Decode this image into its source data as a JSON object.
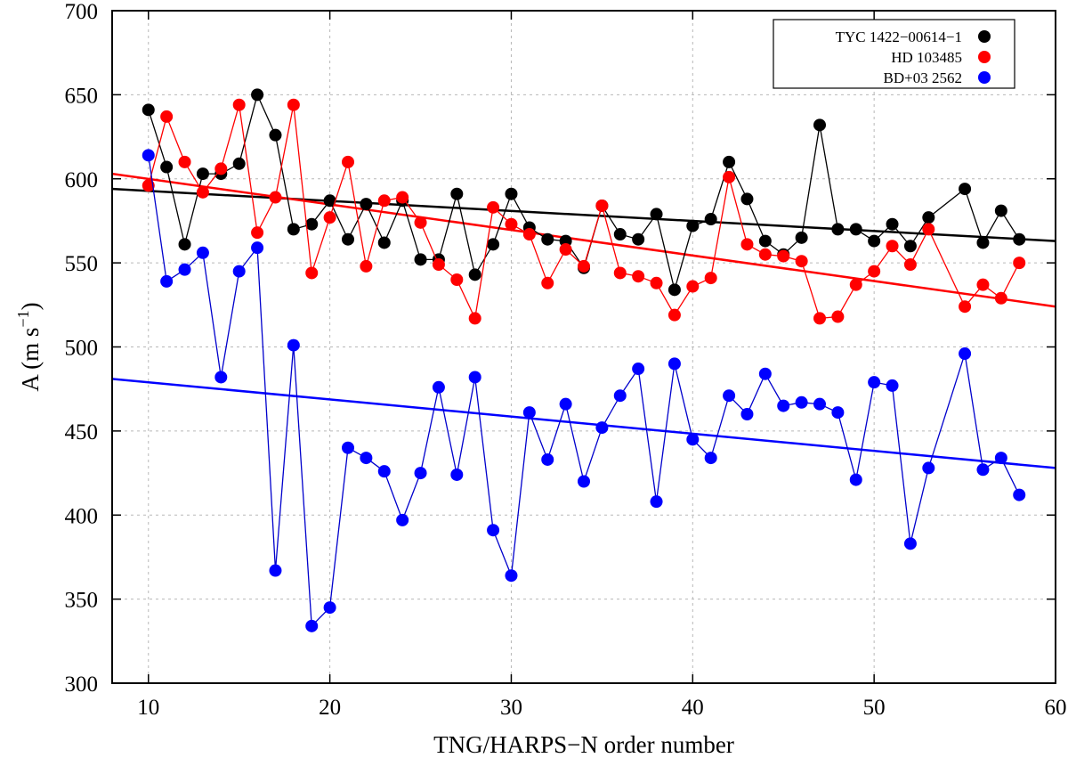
{
  "chart_data": {
    "type": "scatter",
    "xlabel": "TNG/HARPS−N order number",
    "ylabel": {
      "main": "A (m s",
      "sup": "−1",
      "close": ")"
    },
    "xlim": [
      8,
      60
    ],
    "ylim": [
      300,
      700
    ],
    "xticks": [
      10,
      20,
      30,
      40,
      50,
      60
    ],
    "yticks": [
      300,
      350,
      400,
      450,
      500,
      550,
      600,
      650,
      700
    ],
    "grid": true,
    "legend_position": "top-right",
    "series": [
      {
        "name": "TYC 1422−00614−1",
        "color": "#000000",
        "line_color": "#000000",
        "x": [
          10,
          11,
          12,
          13,
          14,
          15,
          16,
          17,
          18,
          19,
          20,
          21,
          22,
          23,
          24,
          25,
          26,
          27,
          28,
          29,
          30,
          31,
          32,
          33,
          34,
          35,
          36,
          37,
          38,
          39,
          40,
          41,
          42,
          43,
          44,
          45,
          46,
          47,
          48,
          49,
          50,
          51,
          52,
          53,
          55,
          56,
          57,
          58
        ],
        "y": [
          641,
          607,
          561,
          603,
          603,
          609,
          650,
          626,
          570,
          573,
          587,
          564,
          585,
          562,
          587,
          552,
          552,
          591,
          543,
          561,
          591,
          571,
          564,
          563,
          547,
          584,
          567,
          564,
          579,
          534,
          572,
          576,
          610,
          588,
          563,
          555,
          565,
          632,
          570,
          570,
          563,
          573,
          560,
          577,
          594,
          562,
          581,
          564
        ],
        "fit": [
          [
            8,
            594
          ],
          [
            60,
            563
          ]
        ]
      },
      {
        "name": "HD 103485",
        "color": "#ff0000",
        "line_color": "#ff0000",
        "x": [
          10,
          11,
          12,
          13,
          14,
          15,
          16,
          17,
          18,
          19,
          20,
          21,
          22,
          23,
          24,
          25,
          26,
          27,
          28,
          29,
          30,
          31,
          32,
          33,
          34,
          35,
          36,
          37,
          38,
          39,
          40,
          41,
          42,
          43,
          44,
          45,
          46,
          47,
          48,
          49,
          50,
          51,
          52,
          53,
          55,
          56,
          57,
          58
        ],
        "y": [
          596,
          637,
          610,
          592,
          606,
          644,
          568,
          589,
          644,
          544,
          577,
          610,
          548,
          587,
          589,
          574,
          549,
          540,
          517,
          583,
          573,
          567,
          538,
          558,
          548,
          584,
          544,
          542,
          538,
          519,
          536,
          541,
          601,
          561,
          555,
          554,
          551,
          517,
          518,
          537,
          545,
          560,
          549,
          570,
          524,
          537,
          529,
          550
        ],
        "fit": [
          [
            8,
            603
          ],
          [
            60,
            524
          ]
        ]
      },
      {
        "name": "BD+03 2562",
        "color": "#0000ff",
        "line_color": "#0000cc",
        "x": [
          10,
          11,
          12,
          13,
          14,
          15,
          16,
          17,
          18,
          19,
          20,
          21,
          22,
          23,
          24,
          25,
          26,
          27,
          28,
          29,
          30,
          31,
          32,
          33,
          34,
          35,
          36,
          37,
          38,
          39,
          40,
          41,
          42,
          43,
          44,
          45,
          46,
          47,
          48,
          49,
          50,
          51,
          52,
          53,
          55,
          56,
          57,
          58
        ],
        "y": [
          614,
          539,
          546,
          556,
          482,
          545,
          559,
          367,
          501,
          334,
          345,
          440,
          434,
          426,
          397,
          425,
          476,
          424,
          482,
          391,
          364,
          461,
          433,
          466,
          420,
          452,
          471,
          487,
          408,
          490,
          445,
          434,
          471,
          460,
          484,
          465,
          467,
          466,
          461,
          421,
          479,
          477,
          383,
          428,
          496,
          427,
          434,
          412
        ],
        "fit": [
          [
            8,
            481
          ],
          [
            60,
            428
          ]
        ]
      }
    ]
  }
}
